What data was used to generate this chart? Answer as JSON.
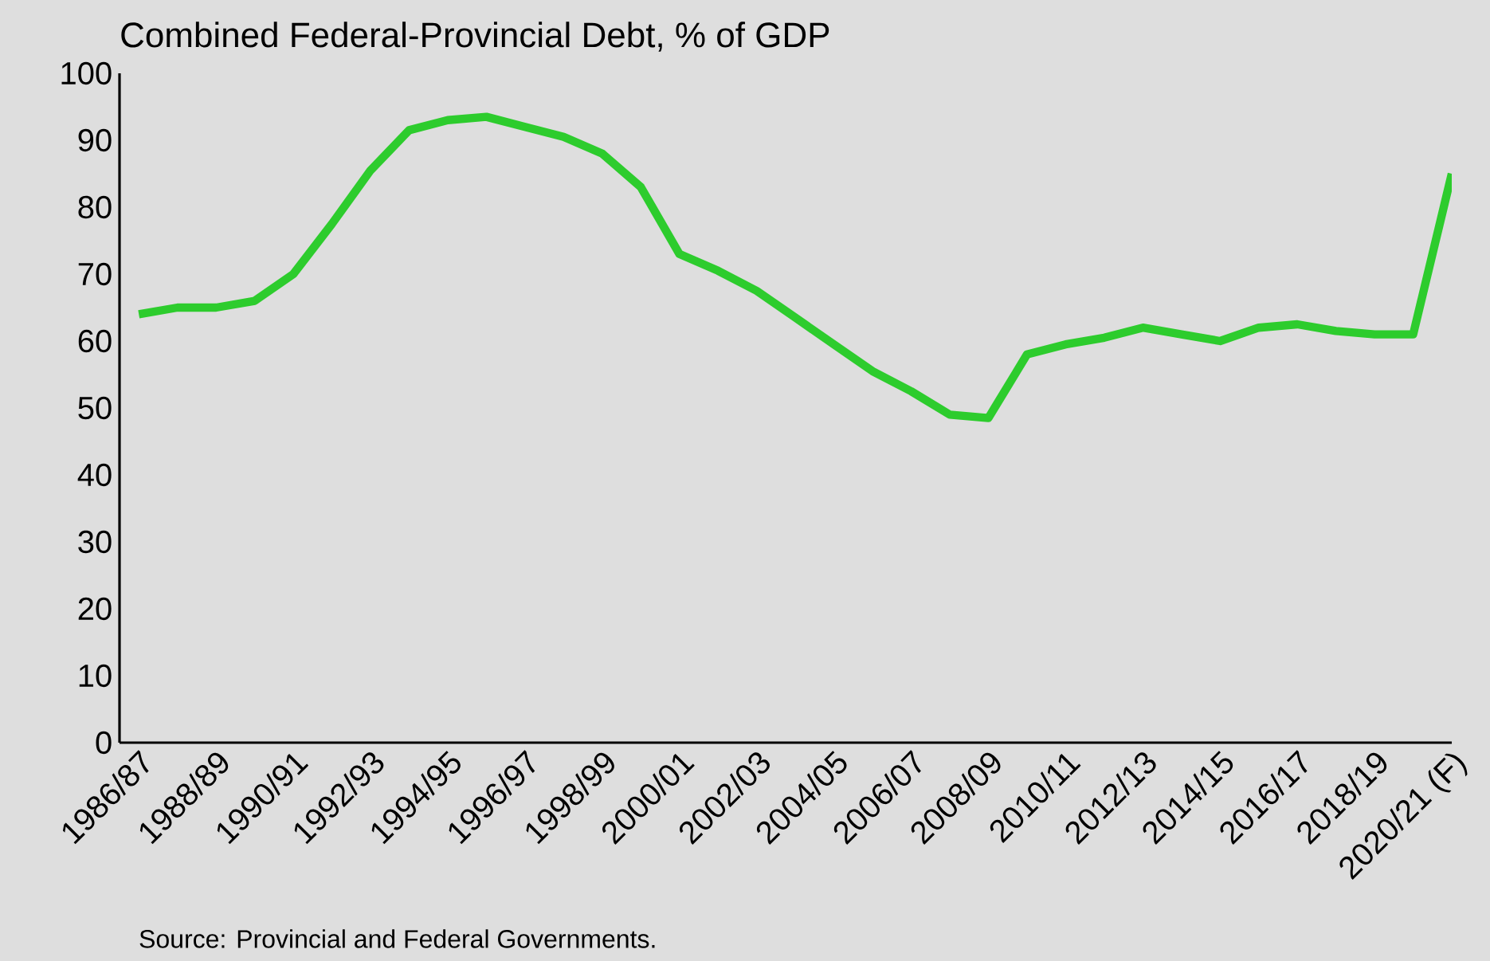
{
  "chart_data": {
    "type": "line",
    "title": "Combined Federal-Provincial Debt, % of GDP",
    "categories": [
      "1986/87",
      null,
      "1988/89",
      null,
      "1990/91",
      null,
      "1992/93",
      null,
      "1994/95",
      null,
      "1996/97",
      null,
      "1998/99",
      null,
      "2000/01",
      null,
      "2002/03",
      null,
      "2004/05",
      null,
      "2006/07",
      null,
      "2008/09",
      null,
      "2010/11",
      null,
      "2012/13",
      null,
      "2014/15",
      null,
      "2016/17",
      null,
      "2018/19",
      null,
      "2020/21 (F)"
    ],
    "values": [
      64,
      65,
      65,
      66,
      70,
      77.5,
      85.5,
      91.5,
      93,
      93.5,
      92,
      90.5,
      88,
      83,
      73,
      70.5,
      67.5,
      63.5,
      59.5,
      55.5,
      52.5,
      49,
      48.5,
      58,
      59.5,
      60.5,
      62,
      61,
      60,
      62,
      62.5,
      61.5,
      61,
      61,
      85
    ],
    "color": "#2dcc2d",
    "ylim": [
      0,
      100
    ],
    "yticks": [
      0,
      10,
      20,
      30,
      40,
      50,
      60,
      70,
      80,
      90,
      100
    ],
    "annotations": [
      "Source: Provincial and Federal Governments."
    ]
  }
}
